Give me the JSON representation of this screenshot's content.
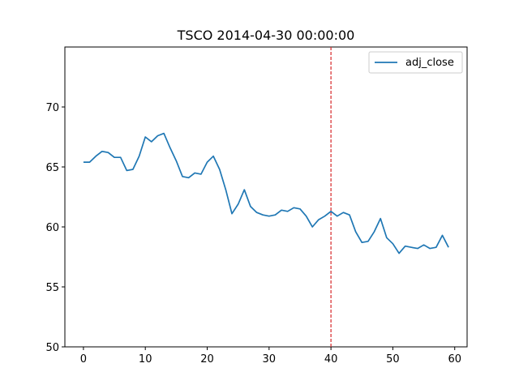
{
  "chart_data": {
    "type": "line",
    "title": "TSCO 2014-04-30 00:00:00",
    "xlabel": "",
    "ylabel": "",
    "xlim": [
      -3,
      62
    ],
    "ylim": [
      50,
      75
    ],
    "xticks": [
      0,
      10,
      20,
      30,
      40,
      50,
      60
    ],
    "yticks": [
      50,
      55,
      60,
      65,
      70
    ],
    "grid": false,
    "legend_position": "top-right",
    "vline": {
      "x": 40,
      "color": "#d62728",
      "style": "dashed"
    },
    "series": [
      {
        "name": "adj_close",
        "color": "#1f77b4",
        "x": [
          0,
          1,
          2,
          3,
          4,
          5,
          6,
          7,
          8,
          9,
          10,
          11,
          12,
          13,
          14,
          15,
          16,
          17,
          18,
          19,
          20,
          21,
          22,
          23,
          24,
          25,
          26,
          27,
          28,
          29,
          30,
          31,
          32,
          33,
          34,
          35,
          36,
          37,
          38,
          39,
          40,
          41,
          42,
          43,
          44,
          45,
          46,
          47,
          48,
          49,
          50,
          51,
          52,
          53,
          54,
          55,
          56,
          57,
          58,
          59
        ],
        "y": [
          65.4,
          65.4,
          65.9,
          66.3,
          66.2,
          65.8,
          65.8,
          64.7,
          64.8,
          65.9,
          67.5,
          67.1,
          67.6,
          67.8,
          66.6,
          65.5,
          64.2,
          64.1,
          64.5,
          64.4,
          65.4,
          65.9,
          64.8,
          63.1,
          61.1,
          61.9,
          63.1,
          61.7,
          61.2,
          61.0,
          60.9,
          61.0,
          61.4,
          61.3,
          61.6,
          61.5,
          60.9,
          60.0,
          60.6,
          60.9,
          61.3,
          60.9,
          61.2,
          61.0,
          59.6,
          58.7,
          58.8,
          59.6,
          60.7,
          59.1,
          58.6,
          57.8,
          58.4,
          58.3,
          58.2,
          58.5,
          58.2,
          58.3,
          59.3,
          58.3
        ]
      }
    ]
  }
}
